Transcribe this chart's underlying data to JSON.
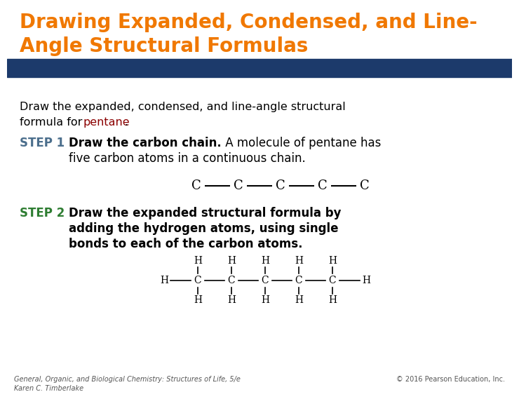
{
  "title_line1": "Drawing Expanded, Condensed, and Line-",
  "title_line2": "Angle Structural Formulas",
  "title_color": "#F07800",
  "title_fontsize": 20,
  "header_bar_color": "#1C3A6B",
  "bg_color": "#FFFFFF",
  "body_text_color": "#000000",
  "step_color": "#4B6E8C",
  "step2_color": "#2E7D32",
  "pentane_color": "#8B0000",
  "footer_text_color": "#555555",
  "footer_left": "General, Organic, and Biological Chemistry: Structures of Life, 5/e\nKaren C. Timberlake",
  "footer_right": "© 2016 Pearson Education, Inc."
}
